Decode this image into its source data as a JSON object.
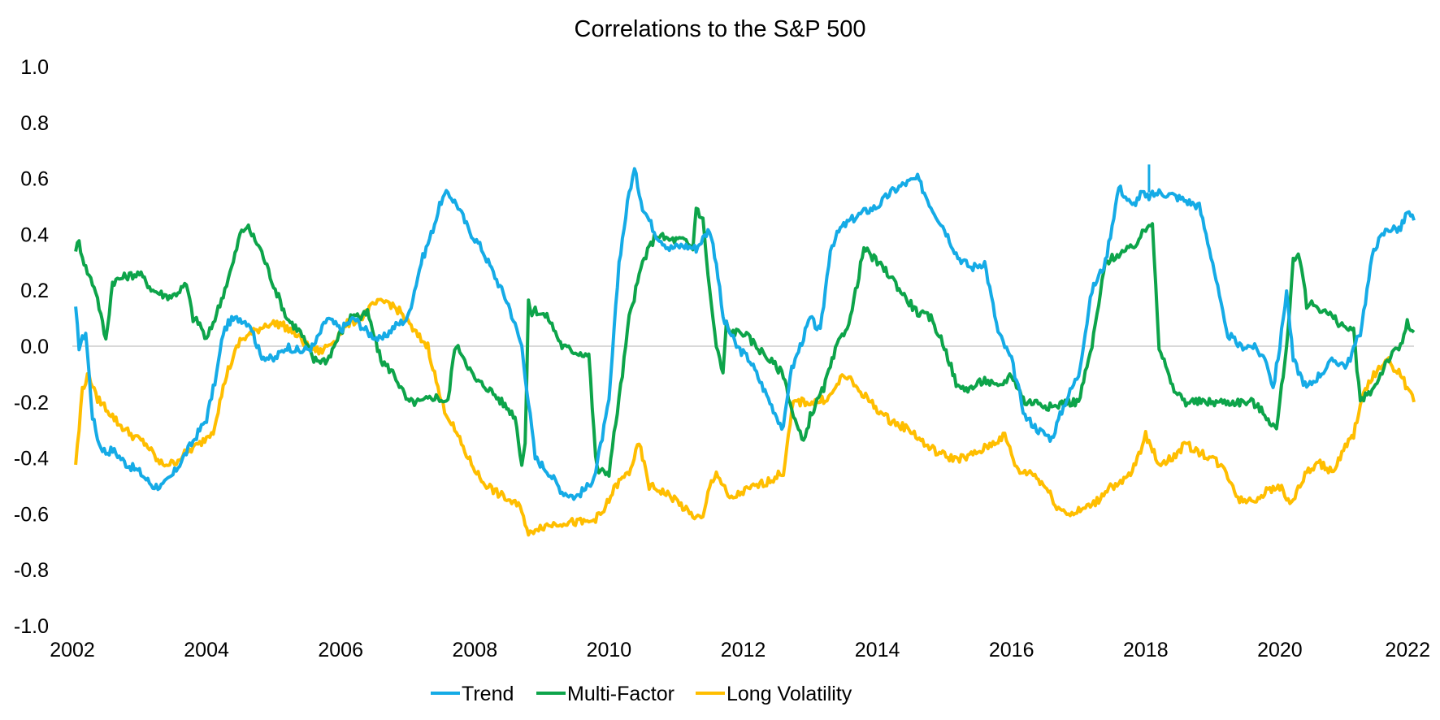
{
  "chart_data": {
    "type": "line",
    "title": "Correlations to the S&P 500",
    "xlabel": "",
    "ylabel": "",
    "xlim": [
      2002,
      2022
    ],
    "ylim": [
      -1.0,
      1.0
    ],
    "x_ticks": [
      "2002",
      "2004",
      "2006",
      "2008",
      "2010",
      "2012",
      "2014",
      "2016",
      "2018",
      "2020",
      "2022"
    ],
    "y_ticks": [
      "1.0",
      "0.8",
      "0.6",
      "0.4",
      "0.2",
      "0.0",
      "-0.2",
      "-0.4",
      "-0.6",
      "-0.8",
      "-1.0"
    ],
    "zero_line": true,
    "grid": false,
    "legend": "bottom",
    "series": [
      {
        "name": "Trend",
        "color": "#15ABE6",
        "x": [
          2002.05,
          2002.1,
          2002.2,
          2002.3,
          2002.4,
          2002.5,
          2002.6,
          2002.8,
          2003.0,
          2003.2,
          2003.35,
          2003.5,
          2003.65,
          2003.8,
          2004.0,
          2004.15,
          2004.25,
          2004.35,
          2004.5,
          2004.65,
          2004.8,
          2005.0,
          2005.2,
          2005.4,
          2005.6,
          2005.8,
          2006.0,
          2006.2,
          2006.4,
          2006.6,
          2006.8,
          2007.0,
          2007.1,
          2007.2,
          2007.35,
          2007.5,
          2007.6,
          2007.75,
          2007.9,
          2008.1,
          2008.3,
          2008.5,
          2008.7,
          2008.9,
          2009.1,
          2009.3,
          2009.5,
          2009.7,
          2009.8,
          2010.0,
          2010.15,
          2010.3,
          2010.38,
          2010.5,
          2010.7,
          2010.9,
          2011.1,
          2011.3,
          2011.5,
          2011.6,
          2011.7,
          2011.9,
          2012.1,
          2012.3,
          2012.5,
          2012.6,
          2012.7,
          2012.85,
          2013.0,
          2013.15,
          2013.3,
          2013.45,
          2013.6,
          2013.8,
          2014.0,
          2014.2,
          2014.4,
          2014.6,
          2014.8,
          2015.0,
          2015.2,
          2015.4,
          2015.6,
          2015.8,
          2015.9,
          2016.0,
          2016.2,
          2016.4,
          2016.6,
          2016.8,
          2017.0,
          2017.2,
          2017.4,
          2017.6,
          2017.8,
          2017.95,
          2018.0,
          2018.2,
          2018.4,
          2018.6,
          2018.8,
          2019.0,
          2019.2,
          2019.4,
          2019.6,
          2019.8,
          2019.9,
          2020.0,
          2020.1,
          2020.2,
          2020.4,
          2020.6,
          2020.8,
          2021.0,
          2021.2,
          2021.4,
          2021.6,
          2021.8,
          2021.9,
          2022.0
        ],
        "values": [
          0.13,
          0.0,
          0.05,
          -0.25,
          -0.35,
          -0.38,
          -0.37,
          -0.42,
          -0.45,
          -0.5,
          -0.5,
          -0.46,
          -0.4,
          -0.34,
          -0.26,
          -0.1,
          0.05,
          0.09,
          0.1,
          0.08,
          -0.03,
          -0.05,
          0.0,
          -0.02,
          0.0,
          0.1,
          0.06,
          0.1,
          0.05,
          0.02,
          0.07,
          0.1,
          0.2,
          0.3,
          0.4,
          0.52,
          0.55,
          0.5,
          0.42,
          0.35,
          0.25,
          0.15,
          0.0,
          -0.4,
          -0.45,
          -0.52,
          -0.54,
          -0.5,
          -0.45,
          -0.2,
          0.3,
          0.55,
          0.63,
          0.5,
          0.4,
          0.35,
          0.36,
          0.35,
          0.42,
          0.3,
          0.1,
          0.0,
          -0.05,
          -0.15,
          -0.25,
          -0.3,
          -0.1,
          0.0,
          0.1,
          0.05,
          0.35,
          0.42,
          0.45,
          0.48,
          0.5,
          0.55,
          0.58,
          0.6,
          0.5,
          0.42,
          0.32,
          0.28,
          0.3,
          0.05,
          0.0,
          -0.05,
          -0.25,
          -0.3,
          -0.33,
          -0.2,
          -0.1,
          0.2,
          0.3,
          0.57,
          0.5,
          0.55,
          0.53,
          0.55,
          0.54,
          0.52,
          0.5,
          0.3,
          0.05,
          0.0,
          0.0,
          -0.05,
          -0.15,
          0.0,
          0.2,
          -0.05,
          -0.15,
          -0.1,
          -0.05,
          -0.07,
          0.05,
          0.35,
          0.42,
          0.42,
          0.48,
          0.45
        ],
        "spikes": [
          [
            2018.05,
            0.65
          ]
        ]
      },
      {
        "name": "Multi-Factor",
        "color": "#0DA44A",
        "x": [
          2002.05,
          2002.1,
          2002.2,
          2002.35,
          2002.5,
          2002.6,
          2002.8,
          2003.0,
          2003.2,
          2003.4,
          2003.5,
          2003.6,
          2003.7,
          2003.8,
          2003.9,
          2004.0,
          2004.2,
          2004.4,
          2004.5,
          2004.6,
          2004.8,
          2005.0,
          2005.2,
          2005.4,
          2005.6,
          2005.8,
          2006.0,
          2006.2,
          2006.3,
          2006.4,
          2006.6,
          2006.8,
          2007.0,
          2007.2,
          2007.4,
          2007.6,
          2007.7,
          2007.8,
          2008.0,
          2008.2,
          2008.4,
          2008.6,
          2008.7,
          2008.75,
          2008.8,
          2008.85,
          2008.9,
          2009.1,
          2009.3,
          2009.5,
          2009.7,
          2009.8,
          2009.85,
          2010.0,
          2010.2,
          2010.3,
          2010.5,
          2010.7,
          2010.9,
          2011.1,
          2011.25,
          2011.3,
          2011.4,
          2011.5,
          2011.6,
          2011.7,
          2011.75,
          2011.8,
          2012.0,
          2012.2,
          2012.4,
          2012.6,
          2012.75,
          2012.9,
          2013.0,
          2013.2,
          2013.4,
          2013.6,
          2013.8,
          2014.0,
          2014.2,
          2014.4,
          2014.6,
          2014.8,
          2015.0,
          2015.2,
          2015.4,
          2015.6,
          2015.8,
          2016.0,
          2016.2,
          2016.4,
          2016.6,
          2016.8,
          2017.0,
          2017.2,
          2017.4,
          2017.6,
          2017.8,
          2017.95,
          2018.1,
          2018.2,
          2018.4,
          2018.6,
          2018.8,
          2019.0,
          2019.2,
          2019.4,
          2019.6,
          2019.8,
          2019.95,
          2020.1,
          2020.2,
          2020.3,
          2020.4,
          2020.5,
          2020.7,
          2020.9,
          2021.1,
          2021.2,
          2021.4,
          2021.6,
          2021.8,
          2021.9,
          2022.0
        ],
        "values": [
          0.35,
          0.37,
          0.28,
          0.2,
          0.02,
          0.23,
          0.25,
          0.26,
          0.2,
          0.18,
          0.18,
          0.2,
          0.22,
          0.1,
          0.08,
          0.02,
          0.15,
          0.3,
          0.4,
          0.43,
          0.35,
          0.22,
          0.1,
          0.05,
          -0.05,
          -0.05,
          0.05,
          0.12,
          0.1,
          0.12,
          -0.05,
          -0.1,
          -0.2,
          -0.2,
          -0.18,
          -0.2,
          0.0,
          -0.02,
          -0.12,
          -0.15,
          -0.2,
          -0.25,
          -0.42,
          -0.35,
          0.15,
          0.12,
          0.13,
          0.1,
          0.0,
          -0.02,
          -0.03,
          -0.4,
          -0.45,
          -0.45,
          -0.1,
          0.1,
          0.3,
          0.4,
          0.38,
          0.38,
          0.35,
          0.5,
          0.45,
          0.2,
          0.0,
          -0.1,
          0.08,
          0.05,
          0.05,
          0.0,
          -0.05,
          -0.1,
          -0.25,
          -0.35,
          -0.25,
          -0.15,
          0.0,
          0.1,
          0.35,
          0.3,
          0.25,
          0.18,
          0.12,
          0.1,
          0.0,
          -0.15,
          -0.15,
          -0.12,
          -0.15,
          -0.1,
          -0.2,
          -0.2,
          -0.22,
          -0.2,
          -0.2,
          0.0,
          0.3,
          0.33,
          0.35,
          0.4,
          0.45,
          0.0,
          -0.15,
          -0.2,
          -0.2,
          -0.2,
          -0.2,
          -0.2,
          -0.2,
          -0.25,
          -0.3,
          0.0,
          0.3,
          0.32,
          0.15,
          0.15,
          0.12,
          0.08,
          0.05,
          -0.2,
          -0.15,
          -0.05,
          0.0,
          0.08,
          0.05
        ],
        "spikes": []
      },
      {
        "name": "Long Volatility",
        "color": "#FFBE00",
        "x": [
          2002.05,
          2002.1,
          2002.15,
          2002.25,
          2002.35,
          2002.5,
          2002.7,
          2002.9,
          2003.1,
          2003.3,
          2003.5,
          2003.7,
          2003.9,
          2004.1,
          2004.3,
          2004.5,
          2004.7,
          2004.9,
          2005.1,
          2005.3,
          2005.5,
          2005.7,
          2005.9,
          2006.1,
          2006.3,
          2006.5,
          2006.7,
          2006.9,
          2007.1,
          2007.3,
          2007.5,
          2007.7,
          2007.9,
          2008.1,
          2008.3,
          2008.5,
          2008.7,
          2008.8,
          2008.9,
          2009.1,
          2009.3,
          2009.5,
          2009.7,
          2009.9,
          2010.1,
          2010.3,
          2010.45,
          2010.6,
          2010.8,
          2011.0,
          2011.2,
          2011.4,
          2011.5,
          2011.6,
          2011.8,
          2012.0,
          2012.2,
          2012.4,
          2012.6,
          2012.75,
          2012.9,
          2013.1,
          2013.3,
          2013.5,
          2013.7,
          2013.9,
          2014.1,
          2014.3,
          2014.5,
          2014.7,
          2014.9,
          2015.1,
          2015.3,
          2015.5,
          2015.7,
          2015.9,
          2016.1,
          2016.3,
          2016.5,
          2016.7,
          2016.9,
          2017.1,
          2017.3,
          2017.45,
          2017.6,
          2017.8,
          2018.0,
          2018.2,
          2018.4,
          2018.6,
          2018.8,
          2019.0,
          2019.2,
          2019.4,
          2019.6,
          2019.8,
          2020.0,
          2020.1,
          2020.2,
          2020.4,
          2020.6,
          2020.8,
          2021.0,
          2021.1,
          2021.2,
          2021.4,
          2021.6,
          2021.8,
          2021.9,
          2022.0
        ],
        "values": [
          -0.42,
          -0.3,
          -0.15,
          -0.1,
          -0.18,
          -0.22,
          -0.28,
          -0.32,
          -0.35,
          -0.42,
          -0.42,
          -0.38,
          -0.35,
          -0.3,
          -0.1,
          0.02,
          0.05,
          0.08,
          0.08,
          0.05,
          0.0,
          -0.02,
          0.02,
          0.08,
          0.1,
          0.15,
          0.16,
          0.12,
          0.05,
          0.0,
          -0.2,
          -0.3,
          -0.4,
          -0.48,
          -0.52,
          -0.55,
          -0.58,
          -0.68,
          -0.65,
          -0.64,
          -0.63,
          -0.63,
          -0.63,
          -0.6,
          -0.5,
          -0.45,
          -0.35,
          -0.5,
          -0.52,
          -0.55,
          -0.6,
          -0.62,
          -0.5,
          -0.45,
          -0.55,
          -0.52,
          -0.5,
          -0.48,
          -0.45,
          -0.2,
          -0.2,
          -0.2,
          -0.18,
          -0.1,
          -0.15,
          -0.2,
          -0.25,
          -0.28,
          -0.3,
          -0.35,
          -0.38,
          -0.4,
          -0.4,
          -0.38,
          -0.35,
          -0.32,
          -0.45,
          -0.45,
          -0.5,
          -0.58,
          -0.6,
          -0.58,
          -0.55,
          -0.5,
          -0.5,
          -0.45,
          -0.32,
          -0.42,
          -0.4,
          -0.35,
          -0.38,
          -0.4,
          -0.45,
          -0.55,
          -0.55,
          -0.52,
          -0.5,
          -0.55,
          -0.55,
          -0.45,
          -0.42,
          -0.45,
          -0.35,
          -0.32,
          -0.2,
          -0.1,
          -0.05,
          -0.1,
          -0.15,
          -0.2
        ],
        "spikes": []
      }
    ]
  }
}
